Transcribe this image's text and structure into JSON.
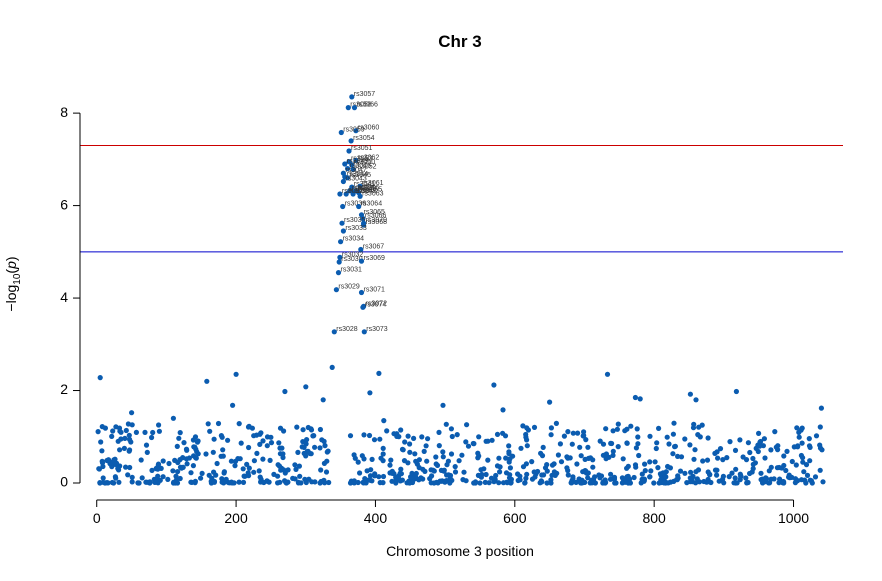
{
  "chart_data": {
    "type": "scatter",
    "title": "Chr 3",
    "xlabel": "Chromosome 3 position",
    "ylabel": "-log10(p)",
    "xlim": [
      -24,
      1071
    ],
    "ylim": [
      0,
      8.5
    ],
    "xticks": [
      0,
      200,
      400,
      600,
      800,
      1000
    ],
    "yticks": [
      0,
      2,
      4,
      6,
      8
    ],
    "point_color": "#0b5cb0",
    "threshold_lines": [
      {
        "y": 7.3,
        "color": "#cc0000"
      },
      {
        "y": 5.0,
        "color": "#0000cc"
      }
    ],
    "labeled_snps": [
      {
        "name": "rs3057",
        "x": 366,
        "y": 8.35
      },
      {
        "name": "rs3058",
        "x": 361,
        "y": 8.12
      },
      {
        "name": "rs3066",
        "x": 370,
        "y": 8.12
      },
      {
        "name": "rs3060",
        "x": 372,
        "y": 7.62
      },
      {
        "name": "rs3059",
        "x": 351,
        "y": 7.58
      },
      {
        "name": "rs3054",
        "x": 365,
        "y": 7.4
      },
      {
        "name": "rs3051",
        "x": 362,
        "y": 7.18
      },
      {
        "name": "rs3053",
        "x": 362,
        "y": 6.95
      },
      {
        "name": "rs3062",
        "x": 372,
        "y": 6.98
      },
      {
        "name": "rs3049",
        "x": 356,
        "y": 6.9
      },
      {
        "name": "rs3050",
        "x": 366,
        "y": 6.88
      },
      {
        "name": "rs3046",
        "x": 360,
        "y": 6.8
      },
      {
        "name": "rs3052",
        "x": 368,
        "y": 6.78
      },
      {
        "name": "rs3047",
        "x": 354,
        "y": 6.7
      },
      {
        "name": "rs3044",
        "x": 356,
        "y": 6.62
      },
      {
        "name": "rs3045",
        "x": 360,
        "y": 6.6
      },
      {
        "name": "rs3043",
        "x": 354,
        "y": 6.52
      },
      {
        "name": "rs3041",
        "x": 366,
        "y": 6.4
      },
      {
        "name": "rs3061",
        "x": 378,
        "y": 6.42
      },
      {
        "name": "rs3039",
        "x": 363,
        "y": 6.32
      },
      {
        "name": "rs3040",
        "x": 368,
        "y": 6.3
      },
      {
        "name": "rs3056",
        "x": 372,
        "y": 6.32
      },
      {
        "name": "rs3055",
        "x": 376,
        "y": 6.28
      },
      {
        "name": "rs3038",
        "x": 358,
        "y": 6.25
      },
      {
        "name": "rs3042",
        "x": 368,
        "y": 6.25
      },
      {
        "name": "rs3063",
        "x": 378,
        "y": 6.2
      },
      {
        "name": "rs3037",
        "x": 349,
        "y": 6.25
      },
      {
        "name": "rs3036",
        "x": 353,
        "y": 5.98
      },
      {
        "name": "rs3064",
        "x": 376,
        "y": 5.98
      },
      {
        "name": "rs3065",
        "x": 380,
        "y": 5.8
      },
      {
        "name": "rs3066",
        "x": 382,
        "y": 5.72
      },
      {
        "name": "rs3035",
        "x": 352,
        "y": 5.62
      },
      {
        "name": "rs3070",
        "x": 383,
        "y": 5.62
      },
      {
        "name": "rs3068",
        "x": 383,
        "y": 5.58
      },
      {
        "name": "rs3033",
        "x": 354,
        "y": 5.45
      },
      {
        "name": "rs3034",
        "x": 350,
        "y": 5.22
      },
      {
        "name": "rs3067",
        "x": 379,
        "y": 5.05
      },
      {
        "name": "rs3032",
        "x": 349,
        "y": 4.88
      },
      {
        "name": "rs3030",
        "x": 348,
        "y": 4.78
      },
      {
        "name": "rs3069",
        "x": 380,
        "y": 4.8
      },
      {
        "name": "rs3031",
        "x": 347,
        "y": 4.55
      },
      {
        "name": "rs3029",
        "x": 344,
        "y": 4.18
      },
      {
        "name": "rs3071",
        "x": 380,
        "y": 4.12
      },
      {
        "name": "rs3072",
        "x": 383,
        "y": 3.82
      },
      {
        "name": "rs3074",
        "x": 382,
        "y": 3.8
      },
      {
        "name": "rs3028",
        "x": 341,
        "y": 3.27
      },
      {
        "name": "rs3073",
        "x": 384,
        "y": 3.27
      }
    ],
    "notable_points": [
      {
        "x": 5,
        "y": 2.28
      },
      {
        "x": 8,
        "y": 1.22
      },
      {
        "x": 50,
        "y": 1.52
      },
      {
        "x": 110,
        "y": 1.4
      },
      {
        "x": 158,
        "y": 2.2
      },
      {
        "x": 195,
        "y": 1.68
      },
      {
        "x": 200,
        "y": 2.35
      },
      {
        "x": 270,
        "y": 1.98
      },
      {
        "x": 300,
        "y": 2.08
      },
      {
        "x": 325,
        "y": 1.8
      },
      {
        "x": 338,
        "y": 2.5
      },
      {
        "x": 392,
        "y": 1.95
      },
      {
        "x": 405,
        "y": 2.37
      },
      {
        "x": 412,
        "y": 1.35
      },
      {
        "x": 497,
        "y": 1.68
      },
      {
        "x": 570,
        "y": 2.12
      },
      {
        "x": 583,
        "y": 1.58
      },
      {
        "x": 650,
        "y": 1.75
      },
      {
        "x": 733,
        "y": 2.35
      },
      {
        "x": 773,
        "y": 1.85
      },
      {
        "x": 780,
        "y": 1.82
      },
      {
        "x": 852,
        "y": 1.92
      },
      {
        "x": 860,
        "y": 1.8
      },
      {
        "x": 918,
        "y": 1.98
      },
      {
        "x": 1040,
        "y": 1.62
      }
    ],
    "background_points": {
      "x_range": [
        0,
        1043
      ],
      "gap": [
        334,
        364
      ],
      "y_range": [
        0,
        1.3
      ],
      "approx_count": 900
    }
  }
}
